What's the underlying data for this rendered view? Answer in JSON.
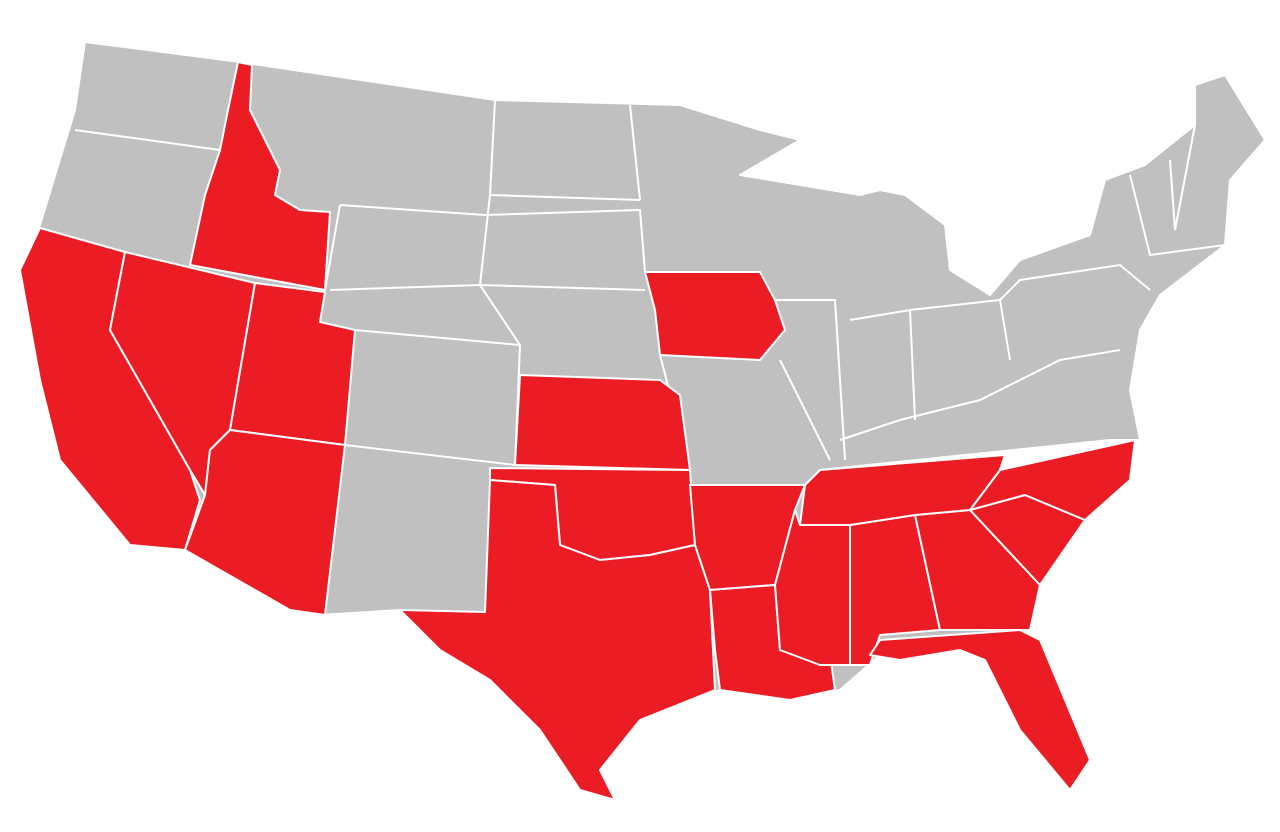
{
  "map": {
    "background": "#ffffff",
    "base_color": "#c0c0c0",
    "highlight_color": "#ec1c24",
    "border_color": "#ffffff"
  }
}
